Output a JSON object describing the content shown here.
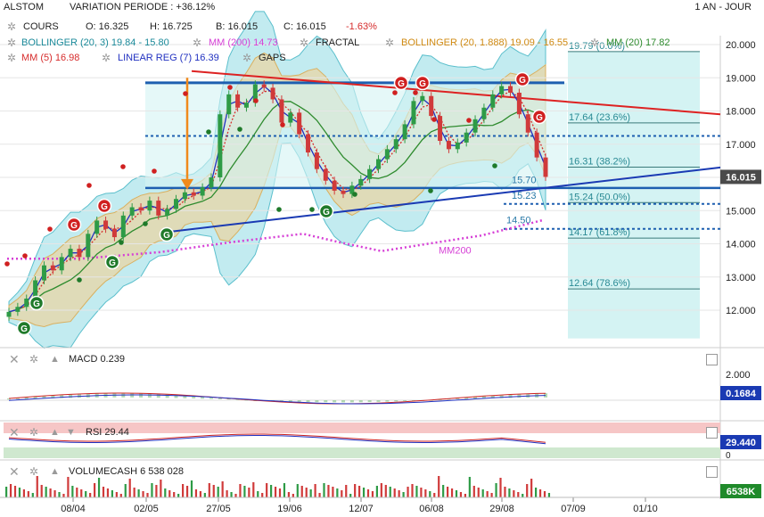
{
  "header": {
    "ticker": "ALSTOM",
    "variation_label": "VARIATION PERIODE : +36.12%",
    "period": "1 AN - JOUR",
    "cours_label": "COURS",
    "open": "O: 16.325",
    "high": "H: 16.725",
    "low": "B: 16.015",
    "close": "C: 16.015",
    "change": "-1.63%"
  },
  "indicators": [
    {
      "label": "BOLLINGER (20, 3)  19.84 - 15.80",
      "color": "#1b8a9a"
    },
    {
      "label": "MM (200)  14.73",
      "color": "#d63fd6"
    },
    {
      "label": "FRACTAL",
      "color": "#222222"
    },
    {
      "label": "BOLLINGER (20, 1.888)  19.09 - 16.55",
      "color": "#d08a12"
    },
    {
      "label": "MM (20)  17.82",
      "color": "#2e8b2e"
    },
    {
      "label": "MM (5)  16.98",
      "color": "#d62c2c"
    },
    {
      "label": "LINEAR REG (7)  16.39",
      "color": "#2030c0"
    },
    {
      "label": "GAPS",
      "color": "#222222"
    }
  ],
  "colors": {
    "up_candle": "#2e9b46",
    "down_candle": "#d03a3a",
    "bollinger_outer": "#8fdbe3",
    "bollinger_inner": "#e8d6a6",
    "mm200": "#d63fd6",
    "mm20": "#2e8b2e",
    "mm5": "#d62c2c",
    "linreg": "#2030c0",
    "resistance": "#d22",
    "support": "#1a3ab3",
    "fib_zone": "#d4f3f3",
    "price_badge": "#4a4a4a"
  },
  "price_tag": "16.015",
  "mm200_label": "MM200",
  "level_labels": [
    "15.70",
    "15.23",
    "14.50"
  ],
  "fibonacci": [
    {
      "price": 19.79,
      "label": "19.79  (0.0%)"
    },
    {
      "price": 17.64,
      "label": "17.64  (23.6%)"
    },
    {
      "price": 16.31,
      "label": "16.31  (38.2%)"
    },
    {
      "price": 15.24,
      "label": "15.24  (50.0%)"
    },
    {
      "price": 14.17,
      "label": "14.17  (61.8%)"
    },
    {
      "price": 12.64,
      "label": "12.64  (78.6%)"
    }
  ],
  "signal_letter": "G",
  "macd": {
    "label": "MACD  0.239",
    "axis_label": "2.000",
    "value_tag": "0.1684"
  },
  "rsi": {
    "label": "RSI  29.44",
    "value_tag": "29.440",
    "axis_zero": "0"
  },
  "volume": {
    "label": "VOLUMECASH  6 538 028",
    "value_tag": "6538K"
  },
  "chart_data": {
    "type": "candlestick",
    "title": "ALSTOM",
    "period": "1 AN - JOUR",
    "x_tick_labels": [
      "08/04",
      "02/05",
      "27/05",
      "19/06",
      "12/07",
      "06/08",
      "29/08",
      "07/09",
      "01/10"
    ],
    "y_tick_labels": [
      "20.000",
      "19.000",
      "18.000",
      "17.000",
      "16.000",
      "15.000",
      "14.000",
      "13.000",
      "12.000"
    ],
    "ylim": [
      11.0,
      20.4
    ],
    "close_series": [
      11.95,
      12.1,
      12.35,
      12.9,
      13.35,
      13.2,
      13.6,
      13.85,
      13.6,
      14.3,
      14.7,
      14.45,
      14.2,
      14.85,
      15.1,
      15.0,
      15.3,
      14.85,
      15.05,
      15.35,
      15.55,
      15.45,
      15.7,
      16.0,
      17.9,
      18.5,
      18.1,
      18.25,
      18.8,
      18.7,
      18.35,
      17.65,
      17.95,
      17.3,
      16.75,
      16.25,
      15.9,
      15.6,
      15.5,
      15.75,
      15.95,
      16.25,
      16.55,
      16.85,
      17.15,
      17.6,
      18.3,
      18.45,
      17.85,
      17.1,
      16.85,
      17.05,
      17.35,
      17.75,
      18.1,
      18.5,
      18.75,
      18.55,
      17.9,
      17.35,
      16.6,
      16.015
    ],
    "resistance": {
      "from": [
        "02/05",
        19.2
      ],
      "to": [
        "01/10",
        17.9
      ]
    },
    "support": {
      "from": [
        "02/05",
        14.35
      ],
      "to": [
        "01/10",
        16.3
      ]
    },
    "horizontal_levels": [
      18.85,
      17.25,
      15.68,
      15.2,
      14.45
    ],
    "fibonacci": [
      19.79,
      17.64,
      16.31,
      15.24,
      14.17,
      12.64
    ],
    "macd": {
      "value": 0.239,
      "signal_tag": 0.1684
    },
    "rsi": {
      "value": 29.44
    },
    "volume": {
      "last": 6538028
    }
  }
}
